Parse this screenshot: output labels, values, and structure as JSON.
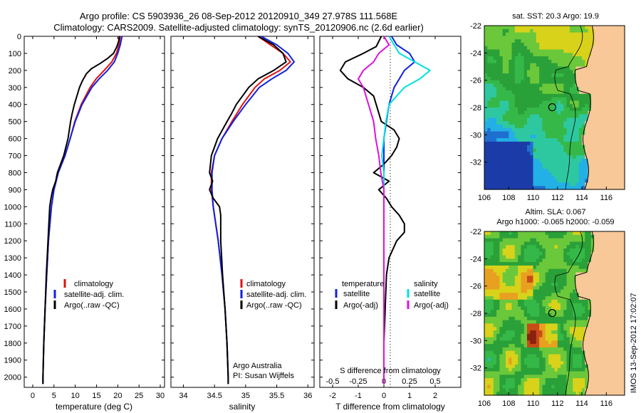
{
  "header": {
    "line1": "Argo profile: CS 5903936_26 08-Sep-2012 20120910_349 27.978S 111.568E",
    "line2": "Climatology: CARS2009. Satellite-adjusted climatology: synTS_20120906.nc (2.6d earlier)"
  },
  "colors": {
    "climatology": "#e01010",
    "satellite": "#1020e0",
    "argo": "#000000",
    "sat_salinity": "#00e0e0",
    "argo_salinity": "#e010e0",
    "land": "#f8c898"
  },
  "chart_data": [
    {
      "type": "line",
      "panel": "temperature",
      "xlabel": "temperature (deg C)",
      "ylabel": "",
      "xlim": [
        -2,
        31
      ],
      "ylim": [
        2060,
        0
      ],
      "y_reversed": true,
      "xticks": [
        0,
        5,
        10,
        15,
        20,
        25,
        30
      ],
      "yticks": [
        0,
        100,
        200,
        300,
        400,
        500,
        600,
        700,
        800,
        900,
        1000,
        1100,
        1200,
        1300,
        1400,
        1500,
        1600,
        1700,
        1800,
        1900,
        2000
      ],
      "legend": [
        "climatology",
        "satellite-adj. clim.",
        "Argo(..raw -QC)"
      ],
      "series": [
        {
          "name": "climatology",
          "color": "#e01010",
          "depth": [
            0,
            50,
            100,
            150,
            200,
            250,
            300,
            400,
            500,
            600,
            700,
            800,
            900,
            1000,
            1200,
            1400,
            1600,
            1800,
            2000,
            2040
          ],
          "values": [
            20.6,
            20.3,
            19.7,
            18.6,
            16.8,
            14.9,
            13.5,
            11.4,
            9.9,
            8.8,
            7.6,
            6.0,
            5.0,
            4.4,
            3.7,
            3.3,
            2.9,
            2.6,
            2.4,
            2.4
          ]
        },
        {
          "name": "satellite-adj. clim.",
          "color": "#1020e0",
          "depth": [
            0,
            50,
            100,
            150,
            200,
            250,
            300,
            400,
            500,
            600,
            700,
            800,
            900,
            1000,
            1200,
            1400,
            1600,
            1800,
            2000,
            2040
          ],
          "values": [
            21.0,
            20.6,
            20.0,
            19.2,
            17.6,
            15.6,
            13.9,
            11.6,
            10.0,
            8.8,
            7.6,
            6.0,
            5.0,
            4.4,
            3.7,
            3.3,
            2.9,
            2.6,
            2.4,
            2.4
          ]
        },
        {
          "name": "Argo(..raw -QC)",
          "color": "#000000",
          "depth": [
            0,
            30,
            60,
            100,
            130,
            160,
            190,
            220,
            260,
            300,
            350,
            400,
            450,
            500,
            600,
            700,
            800,
            850,
            900,
            950,
            1000,
            1200,
            1400,
            1600,
            1800,
            2000,
            2040
          ],
          "values": [
            20.4,
            20.2,
            19.8,
            19.0,
            17.6,
            15.8,
            13.8,
            12.6,
            11.7,
            11.0,
            10.4,
            9.8,
            9.3,
            8.9,
            8.3,
            7.3,
            5.8,
            5.4,
            4.7,
            4.3,
            4.0,
            3.6,
            3.2,
            2.9,
            2.6,
            2.4,
            2.4
          ]
        }
      ]
    },
    {
      "type": "line",
      "panel": "salinity",
      "xlabel": "salinity",
      "ylabel": "",
      "xlim": [
        33.8,
        36.1
      ],
      "ylim": [
        2060,
        0
      ],
      "y_reversed": true,
      "xticks": [
        34,
        34.5,
        35,
        35.5,
        36
      ],
      "legend": [
        "climatology",
        "satellite-adj. clim.",
        "Argo(..raw -QC)"
      ],
      "annotations": [
        "Argo Australia",
        "PI: Susan Wijffels"
      ],
      "series": [
        {
          "name": "climatology",
          "color": "#e01010",
          "depth": [
            0,
            50,
            100,
            150,
            200,
            250,
            300,
            400,
            500,
            600,
            700,
            800,
            900,
            1000,
            1100,
            1200,
            1400,
            1600,
            1800,
            2000,
            2040
          ],
          "values": [
            35.2,
            35.4,
            35.6,
            35.72,
            35.55,
            35.3,
            35.15,
            34.95,
            34.78,
            34.62,
            34.5,
            34.45,
            34.45,
            34.48,
            34.52,
            34.56,
            34.62,
            34.67,
            34.7,
            34.72,
            34.72
          ]
        },
        {
          "name": "satellite-adj. clim.",
          "color": "#1020e0",
          "depth": [
            0,
            50,
            100,
            150,
            200,
            250,
            300,
            400,
            500,
            600,
            700,
            800,
            900,
            1000,
            1100,
            1200,
            1400,
            1600,
            1800,
            2000,
            2040
          ],
          "values": [
            35.25,
            35.5,
            35.68,
            35.78,
            35.65,
            35.42,
            35.22,
            35.0,
            34.8,
            34.62,
            34.5,
            34.46,
            34.46,
            34.48,
            34.52,
            34.56,
            34.62,
            34.67,
            34.7,
            34.72,
            34.72
          ]
        },
        {
          "name": "Argo(..raw -QC)",
          "color": "#000000",
          "depth": [
            0,
            50,
            100,
            150,
            200,
            250,
            300,
            350,
            400,
            450,
            500,
            600,
            700,
            800,
            850,
            900,
            950,
            1000,
            1050,
            1100,
            1200,
            1400,
            1600,
            1800,
            2000,
            2040
          ],
          "values": [
            35.2,
            35.45,
            35.6,
            35.65,
            35.45,
            35.2,
            35.05,
            34.95,
            34.85,
            34.78,
            34.7,
            34.55,
            34.45,
            34.42,
            34.47,
            34.42,
            34.48,
            34.58,
            34.6,
            34.6,
            34.6,
            34.63,
            34.67,
            34.7,
            34.72,
            34.72
          ]
        }
      ]
    },
    {
      "type": "line",
      "panel": "difference",
      "xlabel": "T difference from climatology",
      "xlim": [
        -2.5,
        3.0
      ],
      "xticks": [
        -2,
        -1,
        0,
        1,
        2
      ],
      "secondary_xlabel": "S difference from climatology",
      "secondary_xticks": [
        "-0.5",
        "-0.25",
        "0",
        "0.25",
        "0.5"
      ],
      "ylim": [
        2060,
        0
      ],
      "y_reversed": true,
      "legend_headers": [
        "temperature",
        "salinity"
      ],
      "legend": [
        "satellite",
        "Argo(-adj)",
        "satellite",
        "Argo(-adj)"
      ],
      "series": [
        {
          "name": "satellite",
          "group": "temperature",
          "color": "#1020e0",
          "depth": [
            0,
            50,
            100,
            150,
            200,
            300,
            400,
            500,
            600,
            700,
            800,
            900,
            1000,
            1200,
            1400,
            1600,
            1800,
            2000,
            2040
          ],
          "values": [
            0.3,
            0.5,
            1.0,
            1.2,
            0.8,
            0.4,
            0.2,
            0.1,
            0.0,
            0.0,
            0.0,
            0.0,
            0.0,
            0.0,
            0.0,
            0.0,
            0.0,
            0.0,
            0.0
          ]
        },
        {
          "name": "Argo(-adj)",
          "group": "temperature",
          "color": "#000000",
          "depth": [
            0,
            60,
            100,
            150,
            200,
            250,
            300,
            350,
            400,
            450,
            500,
            550,
            600,
            650,
            700,
            750,
            800,
            850,
            900,
            950,
            1000,
            1050,
            1100,
            1150,
            1200,
            1300,
            1400,
            1600,
            1800,
            2000,
            2040
          ],
          "values": [
            -0.1,
            -0.3,
            -0.8,
            -1.5,
            -1.7,
            -1.4,
            -0.8,
            -0.4,
            -0.3,
            -0.2,
            -0.1,
            0.4,
            0.6,
            0.5,
            0.3,
            0.0,
            -0.4,
            0.2,
            -0.2,
            0.1,
            0.3,
            0.6,
            0.8,
            0.8,
            0.5,
            0.2,
            0.1,
            0.05,
            0.0,
            0.0,
            0.0
          ]
        },
        {
          "name": "satellite",
          "group": "salinity",
          "color": "#00e0e0",
          "depth": [
            0,
            50,
            100,
            150,
            200,
            250,
            300,
            400,
            500,
            600,
            700,
            800,
            900,
            1000,
            1200,
            1400,
            1600,
            1800,
            2000,
            2040
          ],
          "values": [
            0.05,
            0.1,
            0.15,
            0.3,
            0.45,
            0.35,
            0.2,
            0.05,
            0.02,
            0.0,
            -0.02,
            0.0,
            0.0,
            0.0,
            0.0,
            0.0,
            0.0,
            0.0,
            0.0,
            0.0
          ]
        },
        {
          "name": "Argo(-adj)",
          "group": "salinity",
          "color": "#e010e0",
          "depth": [
            0,
            50,
            100,
            150,
            200,
            250,
            300,
            400,
            500,
            600,
            700,
            800,
            900,
            1000,
            1100,
            1200,
            1400,
            1600,
            1800,
            2000,
            2040
          ],
          "values": [
            0.0,
            0.05,
            -0.05,
            -0.1,
            -0.2,
            -0.25,
            -0.2,
            -0.15,
            -0.1,
            -0.08,
            -0.05,
            -0.03,
            0.0,
            0.0,
            0.0,
            0.0,
            0.0,
            0.0,
            0.0,
            0.0,
            0.0
          ]
        }
      ]
    },
    {
      "type": "heatmap",
      "panel": "sst_map",
      "title": "sat. SST: 20.3  Argo: 19.9",
      "xlim": [
        106,
        117.5
      ],
      "ylim": [
        -34,
        -22
      ],
      "xticks": [
        106,
        108,
        110,
        112,
        114,
        116
      ],
      "yticks": [
        -22,
        -24,
        -26,
        -28,
        -30,
        -32
      ],
      "argo_position": {
        "lon": 111.568,
        "lat": -27.978
      },
      "palette": [
        "#1b3ca8",
        "#1f6fd0",
        "#22b0e6",
        "#2ec8a0",
        "#35b848",
        "#2aa038",
        "#6ac83a",
        "#d8d21a"
      ]
    },
    {
      "type": "heatmap",
      "panel": "sla_map",
      "title": "Altim. SLA: 0.067",
      "subtitle": "Argo h1000: -0.065 h2000: -0.059",
      "xlim": [
        106,
        117.5
      ],
      "ylim": [
        -34,
        -22
      ],
      "xticks": [
        106,
        108,
        110,
        112,
        114,
        116
      ],
      "yticks": [
        -22,
        -24,
        -26,
        -28,
        -30,
        -32
      ],
      "argo_position": {
        "lon": 111.568,
        "lat": -27.978
      },
      "palette": [
        "#2ab8b0",
        "#35b848",
        "#2aa038",
        "#6ac83a",
        "#d8d21a",
        "#e8a020",
        "#c84c18",
        "#8a2010"
      ]
    }
  ],
  "side_label": "IMOS 13-Sep-2012 17:02:07"
}
